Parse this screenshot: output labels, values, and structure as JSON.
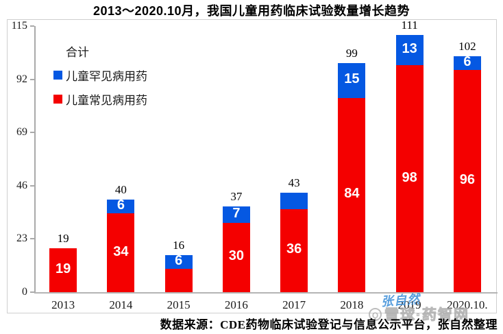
{
  "title": "2013～2020.10月，我国儿童用药临床试验数量增长趋势",
  "legend": {
    "total_label": "合计",
    "items": [
      {
        "label": "儿童罕见病用药",
        "color": "#0558e2"
      },
      {
        "label": "儿童常见病用药",
        "color": "#f40000"
      }
    ]
  },
  "chart_data": {
    "type": "bar",
    "stacked": true,
    "title": "2013～2020.10月，我国儿童用药临床试验数量增长趋势",
    "categories": [
      "2013",
      "2014",
      "2015",
      "2016",
      "2017",
      "2018",
      "2019",
      "2020.10."
    ],
    "series": [
      {
        "name": "儿童常见病用药",
        "color": "#f40000",
        "values": [
          19,
          34,
          10,
          30,
          36,
          84,
          98,
          96
        ],
        "data_labels": [
          "19",
          "34",
          "",
          "30",
          "36",
          "84",
          "98",
          "96"
        ]
      },
      {
        "name": "儿童罕见病用药",
        "color": "#0558e2",
        "values": [
          0,
          6,
          6,
          7,
          7,
          15,
          13,
          6
        ],
        "data_labels": [
          "",
          "6",
          "6",
          "7",
          "",
          "15",
          "13",
          "6"
        ]
      }
    ],
    "totals": [
      19,
      40,
      16,
      37,
      43,
      99,
      111,
      102
    ],
    "totals_series_name": "合计",
    "xlabel": "",
    "ylabel": "",
    "ylim": [
      0,
      115
    ],
    "yticks": [
      0,
      23,
      46,
      69,
      92,
      115
    ],
    "grid": false,
    "legend_position": "top-left"
  },
  "source_note": "数据来源：CDE药物临床试验登记与信息公示平台，张自然整理",
  "watermarks": {
    "signature": "张自然",
    "site_logo_glyph": "Ϙ",
    "site_text": "雪球·药智网"
  },
  "colors": {
    "bar_common": "#f40000",
    "bar_rare": "#0558e2",
    "axis": "#a9a9a9",
    "frame": "#cfcfcf",
    "signature_blue": "#3c8ed8",
    "watermark_gray": "#a8a8a8"
  }
}
